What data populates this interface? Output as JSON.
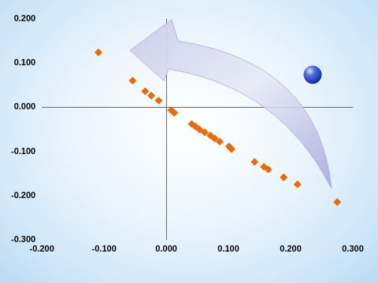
{
  "chart_data": {
    "type": "scatter",
    "x": [
      -0.109,
      -0.054,
      -0.034,
      -0.024,
      -0.012,
      0.008,
      0.013,
      0.041,
      0.047,
      0.054,
      0.062,
      0.071,
      0.078,
      0.086,
      0.101,
      0.105,
      0.142,
      0.157,
      0.164,
      0.189,
      0.211,
      0.275
    ],
    "values": [
      0.124,
      0.06,
      0.036,
      0.026,
      0.015,
      -0.007,
      -0.013,
      -0.038,
      -0.044,
      -0.051,
      -0.057,
      -0.064,
      -0.071,
      -0.078,
      -0.089,
      -0.095,
      -0.124,
      -0.135,
      -0.141,
      -0.159,
      -0.175,
      -0.215
    ],
    "color": "#e46c0a",
    "marker": "diamond",
    "xlim": [
      -0.2,
      0.3
    ],
    "xticks": [
      {
        "value": -0.2,
        "label": "-0.200"
      },
      {
        "value": -0.1,
        "label": "-0.100"
      },
      {
        "value": 0,
        "label": "0.000"
      },
      {
        "value": 0.1,
        "label": "0.100"
      },
      {
        "value": 0.2,
        "label": "0.200"
      },
      {
        "value": 0.3,
        "label": "0.300"
      }
    ],
    "ylim": [
      -0.3,
      0.2
    ],
    "yticks": [
      {
        "value": -0.3,
        "label": "-0.300"
      },
      {
        "value": -0.2,
        "label": "-0.200"
      },
      {
        "value": -0.1,
        "label": "-0.100"
      },
      {
        "value": 0,
        "label": "0.000"
      },
      {
        "value": 0.1,
        "label": "0.100"
      },
      {
        "value": 0.2,
        "label": "0.200"
      }
    ]
  }
}
